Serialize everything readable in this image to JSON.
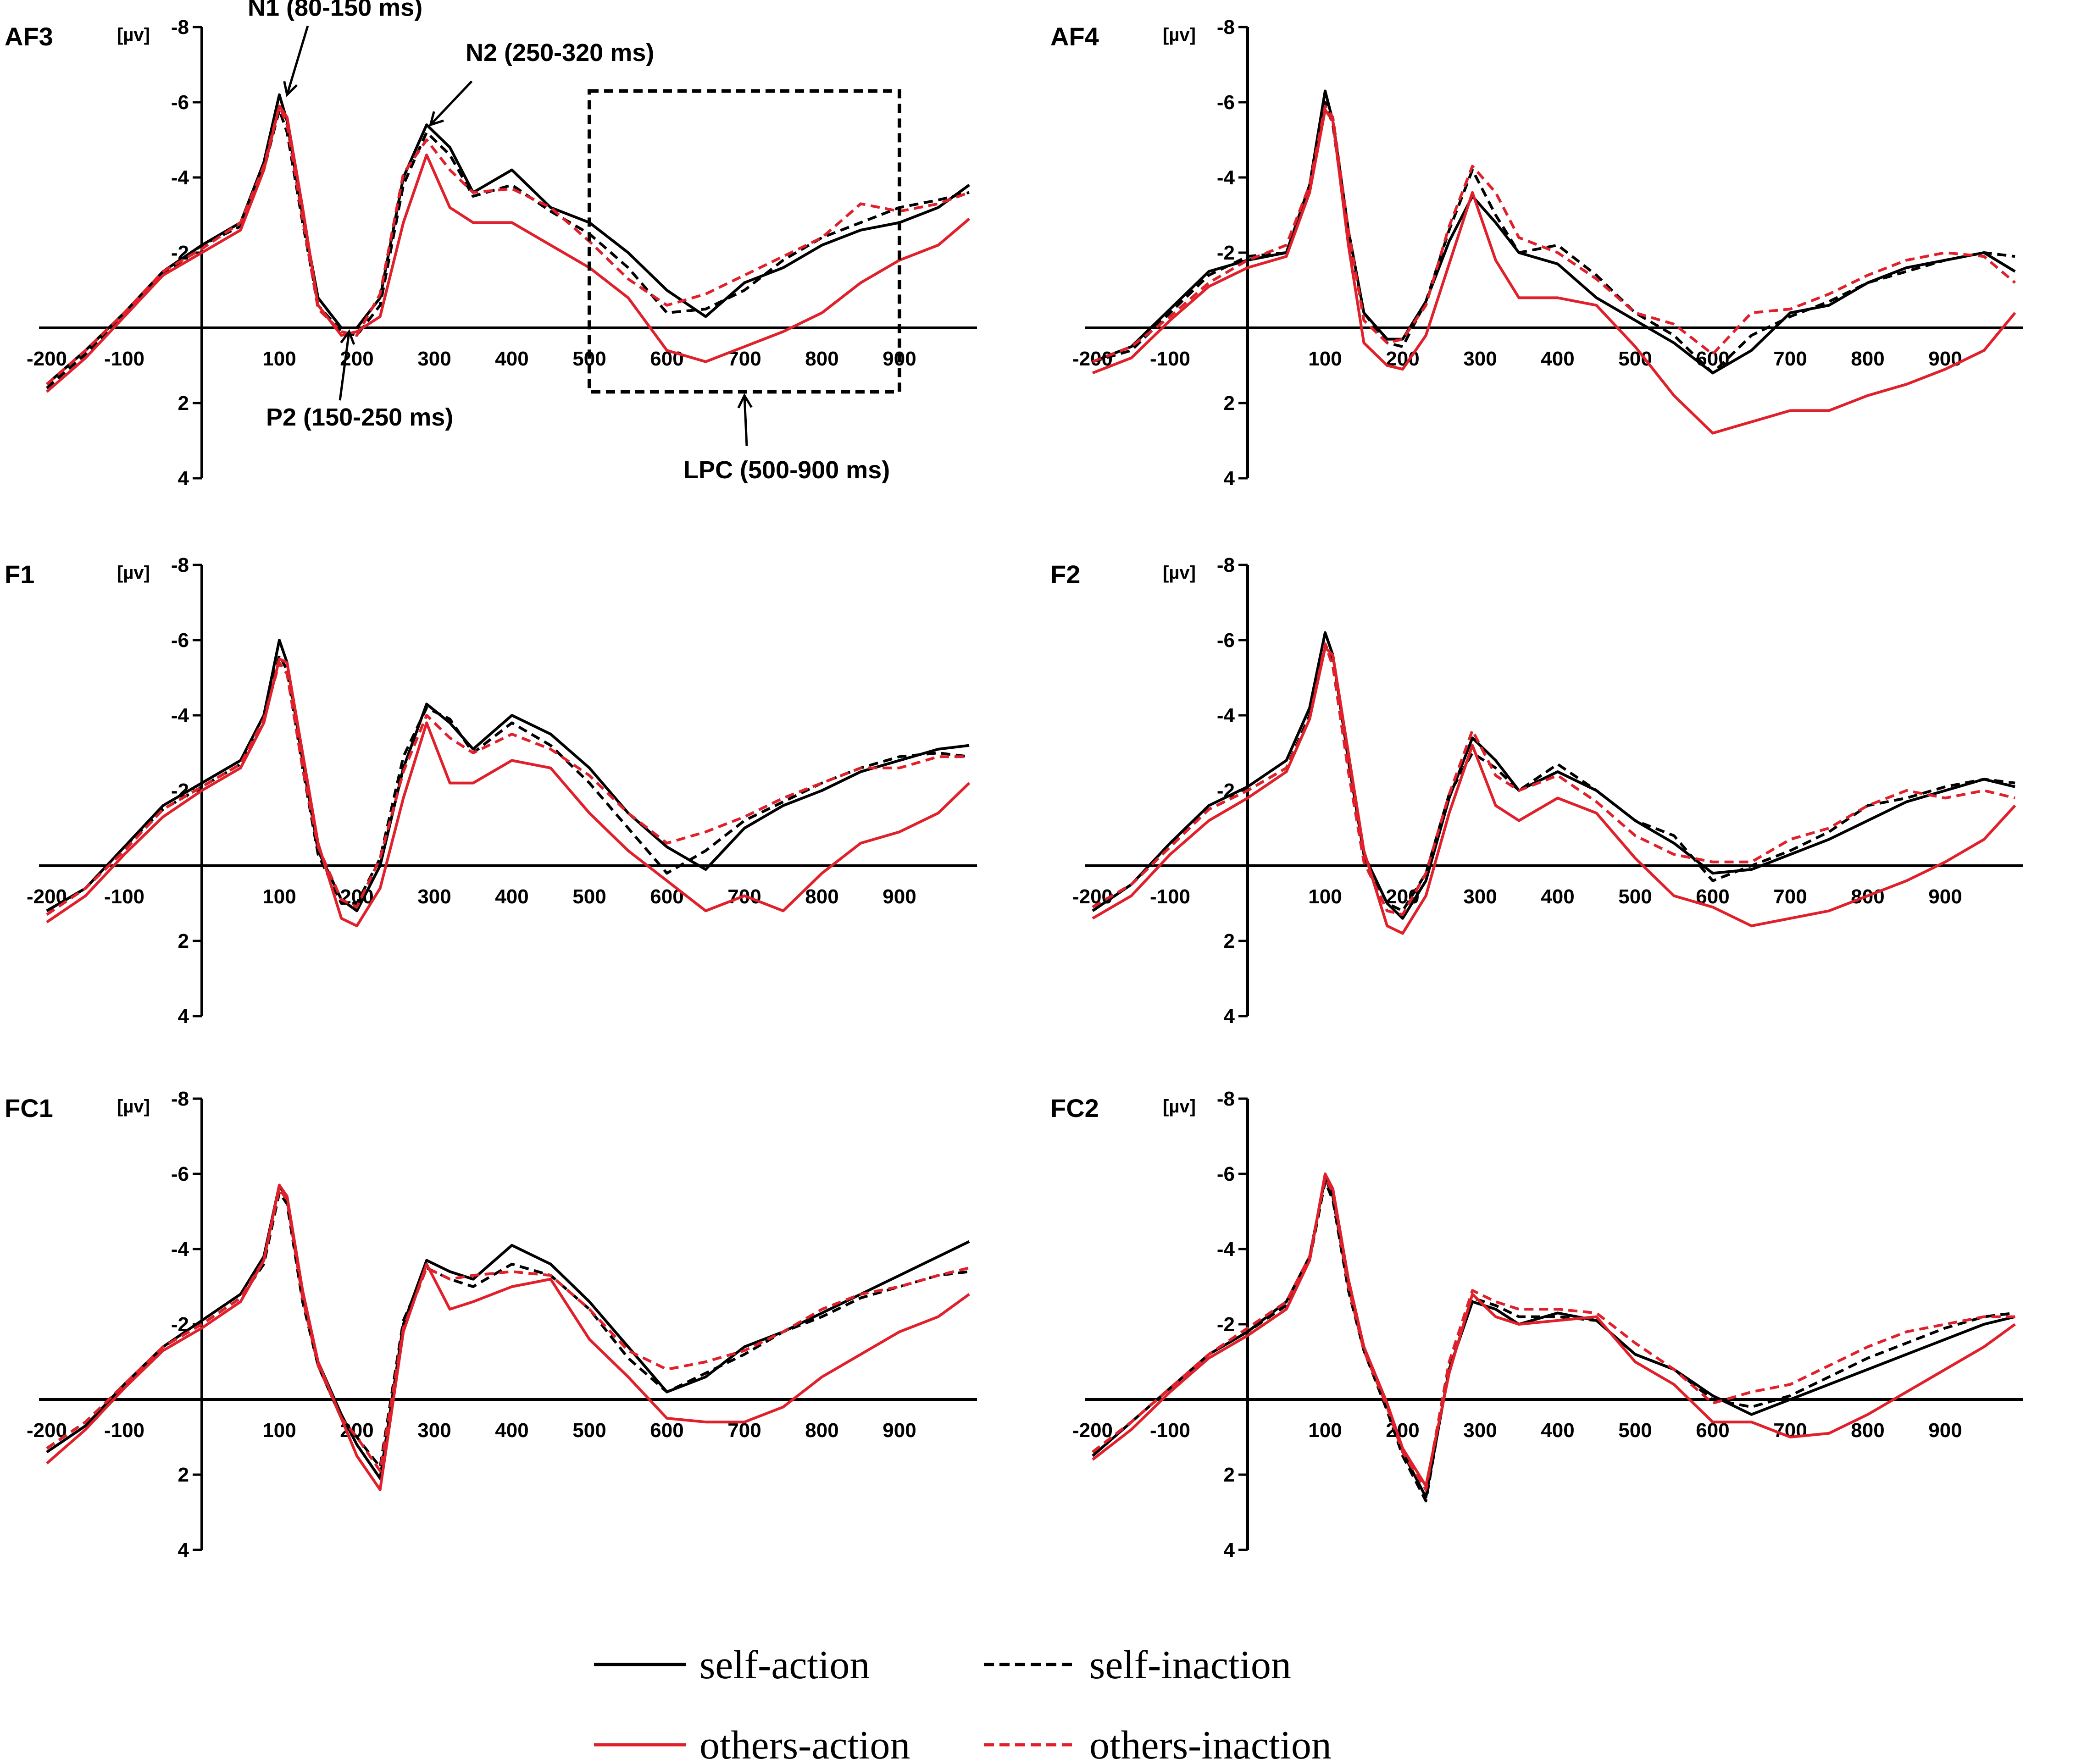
{
  "chart_data": {
    "type": "line",
    "description_units": {
      "x": "ms",
      "y": "µV (negative up)"
    },
    "y_unit_label": "[µv]",
    "xlim": [
      -210,
      1000
    ],
    "ylim": [
      4,
      -8
    ],
    "x_ticks": [
      -200,
      -100,
      100,
      200,
      300,
      400,
      500,
      600,
      700,
      800,
      900
    ],
    "y_ticks": [
      -8,
      -6,
      -4,
      -2,
      2,
      4
    ],
    "legend": [
      {
        "key": "self_action",
        "label": "self-action",
        "color": "#000000",
        "dash": "solid"
      },
      {
        "key": "self_inaction",
        "label": "self-inaction",
        "color": "#000000",
        "dash": "dashed"
      },
      {
        "key": "others_action",
        "label": "others-action",
        "color": "#e0202a",
        "dash": "solid"
      },
      {
        "key": "others_inaction",
        "label": "others-inaction",
        "color": "#e0202a",
        "dash": "dashed"
      }
    ],
    "x": [
      -200,
      -150,
      -100,
      -50,
      0,
      50,
      80,
      100,
      110,
      130,
      150,
      180,
      200,
      230,
      260,
      290,
      320,
      350,
      400,
      450,
      500,
      550,
      600,
      650,
      700,
      750,
      800,
      850,
      900,
      950,
      990
    ],
    "panels": [
      {
        "title": "AF3",
        "annotations": [
          {
            "text": "N1 (80-150 ms)",
            "x": 110,
            "y": -6.2
          },
          {
            "text": "N2 (250-320 ms)",
            "x": 295,
            "y": -5.4
          },
          {
            "text": "P2 (150-250 ms)",
            "x": 190,
            "y": 0.1
          },
          {
            "text": "LPC (500-900 ms)",
            "x": 700,
            "y": 1.8
          }
        ],
        "box": {
          "x": [
            500,
            900
          ],
          "y": [
            -6.3,
            1.7
          ]
        },
        "series": {
          "self_action": [
            1.5,
            0.6,
            -0.4,
            -1.5,
            -2.2,
            -2.8,
            -4.4,
            -6.2,
            -5.5,
            -3.0,
            -0.8,
            0.0,
            0.0,
            -0.8,
            -4.0,
            -5.4,
            -4.8,
            -3.6,
            -4.2,
            -3.2,
            -2.8,
            -2.0,
            -1.0,
            -0.3,
            -1.2,
            -1.6,
            -2.2,
            -2.6,
            -2.8,
            -3.2,
            -3.8
          ],
          "self_inaction": [
            1.6,
            0.7,
            -0.4,
            -1.4,
            -2.2,
            -2.7,
            -4.2,
            -5.8,
            -5.2,
            -2.8,
            -0.6,
            0.1,
            0.2,
            -0.6,
            -3.8,
            -5.2,
            -4.6,
            -3.5,
            -3.8,
            -3.1,
            -2.5,
            -1.6,
            -0.4,
            -0.5,
            -1.0,
            -1.8,
            -2.4,
            -2.8,
            -3.2,
            -3.4,
            -3.6
          ],
          "others_action": [
            1.7,
            0.8,
            -0.3,
            -1.4,
            -2.0,
            -2.6,
            -4.2,
            -5.9,
            -5.6,
            -3.2,
            -0.6,
            0.2,
            0.1,
            -0.3,
            -2.8,
            -4.6,
            -3.2,
            -2.8,
            -2.8,
            -2.2,
            -1.6,
            -0.8,
            0.6,
            0.9,
            0.5,
            0.1,
            -0.4,
            -1.2,
            -1.8,
            -2.2,
            -2.9
          ],
          "others_inaction": [
            1.5,
            0.6,
            -0.4,
            -1.5,
            -2.1,
            -2.8,
            -4.3,
            -5.9,
            -5.4,
            -2.9,
            -0.5,
            0.1,
            0.2,
            -0.9,
            -4.1,
            -5.0,
            -4.2,
            -3.6,
            -3.7,
            -3.2,
            -2.3,
            -1.3,
            -0.6,
            -0.9,
            -1.4,
            -1.9,
            -2.4,
            -3.3,
            -3.1,
            -3.3,
            -3.6
          ]
        }
      },
      {
        "title": "AF4",
        "annotations": [],
        "series": {
          "self_action": [
            0.9,
            0.5,
            -0.5,
            -1.5,
            -1.8,
            -2.0,
            -3.8,
            -6.3,
            -5.5,
            -2.6,
            -0.4,
            0.3,
            0.3,
            -0.7,
            -2.3,
            -3.5,
            -2.8,
            -2.0,
            -1.7,
            -0.8,
            -0.2,
            0.4,
            1.2,
            0.6,
            -0.4,
            -0.6,
            -1.2,
            -1.6,
            -1.8,
            -2.0,
            -1.5
          ],
          "self_inaction": [
            0.9,
            0.6,
            -0.4,
            -1.4,
            -1.9,
            -2.0,
            -3.6,
            -6.0,
            -5.4,
            -2.4,
            -0.4,
            0.4,
            0.5,
            -0.7,
            -2.6,
            -4.2,
            -3.0,
            -2.0,
            -2.2,
            -1.4,
            -0.4,
            0.2,
            1.2,
            0.2,
            -0.3,
            -0.7,
            -1.2,
            -1.5,
            -1.8,
            -2.0,
            -1.9
          ],
          "others_action": [
            1.2,
            0.8,
            -0.2,
            -1.1,
            -1.6,
            -1.9,
            -3.6,
            -5.8,
            -5.5,
            -2.2,
            0.4,
            1.0,
            1.1,
            0.2,
            -1.7,
            -3.6,
            -1.8,
            -0.8,
            -0.8,
            -0.6,
            0.5,
            1.8,
            2.8,
            2.5,
            2.2,
            2.2,
            1.8,
            1.5,
            1.1,
            0.6,
            -0.4
          ],
          "others_inaction": [
            0.9,
            0.5,
            -0.3,
            -1.2,
            -1.8,
            -2.2,
            -3.8,
            -5.9,
            -5.6,
            -2.6,
            -0.2,
            0.4,
            0.3,
            -0.6,
            -2.7,
            -4.3,
            -3.6,
            -2.4,
            -2.0,
            -1.3,
            -0.4,
            -0.1,
            0.7,
            -0.4,
            -0.5,
            -0.9,
            -1.4,
            -1.8,
            -2.0,
            -1.9,
            -1.2
          ]
        }
      },
      {
        "title": "F1",
        "annotations": [],
        "series": {
          "self_action": [
            1.2,
            0.6,
            -0.5,
            -1.6,
            -2.2,
            -2.8,
            -4.0,
            -6.0,
            -5.4,
            -2.8,
            -0.4,
            0.9,
            1.2,
            0.0,
            -2.6,
            -4.3,
            -3.8,
            -3.1,
            -4.0,
            -3.5,
            -2.6,
            -1.4,
            -0.5,
            0.1,
            -1.0,
            -1.6,
            -2.0,
            -2.5,
            -2.8,
            -3.1,
            -3.2
          ],
          "self_inaction": [
            1.2,
            0.6,
            -0.5,
            -1.5,
            -2.1,
            -2.7,
            -3.8,
            -5.6,
            -5.2,
            -2.6,
            -0.3,
            1.0,
            1.0,
            -0.2,
            -2.9,
            -4.2,
            -3.9,
            -3.0,
            -3.8,
            -3.2,
            -2.2,
            -1.0,
            0.2,
            -0.4,
            -1.2,
            -1.7,
            -2.2,
            -2.6,
            -2.9,
            -3.0,
            -2.9
          ],
          "others_action": [
            1.5,
            0.8,
            -0.3,
            -1.3,
            -2.0,
            -2.6,
            -3.8,
            -5.5,
            -5.4,
            -3.0,
            -0.6,
            1.4,
            1.6,
            0.6,
            -1.8,
            -3.8,
            -2.2,
            -2.2,
            -2.8,
            -2.6,
            -1.4,
            -0.4,
            0.4,
            1.2,
            0.8,
            1.2,
            0.2,
            -0.6,
            -0.9,
            -1.4,
            -2.2
          ],
          "others_inaction": [
            1.3,
            0.6,
            -0.4,
            -1.5,
            -2.1,
            -2.7,
            -3.9,
            -5.4,
            -5.1,
            -2.6,
            -0.5,
            0.9,
            1.1,
            -0.2,
            -2.5,
            -4.0,
            -3.4,
            -3.0,
            -3.5,
            -3.1,
            -2.4,
            -1.4,
            -0.6,
            -0.9,
            -1.3,
            -1.8,
            -2.2,
            -2.6,
            -2.6,
            -2.9,
            -2.9
          ]
        }
      },
      {
        "title": "F2",
        "annotations": [],
        "series": {
          "self_action": [
            1.2,
            0.5,
            -0.6,
            -1.6,
            -2.1,
            -2.8,
            -4.2,
            -6.2,
            -5.6,
            -2.8,
            -0.3,
            1.0,
            1.4,
            0.4,
            -1.8,
            -3.4,
            -2.8,
            -2.0,
            -2.5,
            -2.0,
            -1.2,
            -0.6,
            0.2,
            0.1,
            -0.3,
            -0.7,
            -1.2,
            -1.7,
            -2.0,
            -2.3,
            -2.1
          ],
          "self_inaction": [
            1.1,
            0.5,
            -0.5,
            -1.5,
            -2.0,
            -2.6,
            -4.0,
            -5.9,
            -5.4,
            -2.6,
            -0.2,
            1.0,
            1.2,
            0.2,
            -1.9,
            -3.0,
            -2.6,
            -2.0,
            -2.7,
            -2.0,
            -1.2,
            -0.8,
            0.4,
            0.0,
            -0.4,
            -0.9,
            -1.6,
            -1.8,
            -2.1,
            -2.3,
            -2.2
          ],
          "others_action": [
            1.4,
            0.8,
            -0.3,
            -1.2,
            -1.8,
            -2.5,
            -3.9,
            -5.8,
            -5.6,
            -3.0,
            -0.4,
            1.6,
            1.8,
            0.8,
            -1.4,
            -3.2,
            -1.6,
            -1.2,
            -1.8,
            -1.4,
            -0.2,
            0.8,
            1.1,
            1.6,
            1.4,
            1.2,
            0.8,
            0.4,
            -0.1,
            -0.7,
            -1.6
          ],
          "others_inaction": [
            1.1,
            0.5,
            -0.5,
            -1.5,
            -2.0,
            -2.6,
            -3.9,
            -5.9,
            -5.3,
            -2.5,
            -0.1,
            1.2,
            1.3,
            0.2,
            -1.9,
            -3.6,
            -2.4,
            -2.0,
            -2.4,
            -1.7,
            -0.8,
            -0.3,
            -0.1,
            -0.1,
            -0.7,
            -1.0,
            -1.6,
            -2.0,
            -1.8,
            -2.0,
            -1.8
          ]
        }
      },
      {
        "title": "FC1",
        "annotations": [],
        "series": {
          "self_action": [
            1.4,
            0.7,
            -0.4,
            -1.4,
            -2.1,
            -2.8,
            -3.8,
            -5.7,
            -5.3,
            -2.8,
            -1.0,
            0.4,
            1.2,
            2.1,
            -2.0,
            -3.7,
            -3.4,
            -3.2,
            -4.1,
            -3.6,
            -2.6,
            -1.4,
            -0.2,
            -0.6,
            -1.4,
            -1.8,
            -2.3,
            -2.8,
            -3.3,
            -3.8,
            -4.2
          ],
          "self_inaction": [
            1.3,
            0.6,
            -0.4,
            -1.4,
            -2.0,
            -2.7,
            -3.6,
            -5.5,
            -5.2,
            -2.6,
            -0.9,
            0.5,
            1.0,
            1.8,
            -2.1,
            -3.5,
            -3.2,
            -3.0,
            -3.6,
            -3.3,
            -2.4,
            -1.1,
            -0.2,
            -0.7,
            -1.2,
            -1.8,
            -2.2,
            -2.7,
            -3.0,
            -3.3,
            -3.4
          ],
          "others_action": [
            1.7,
            0.8,
            -0.3,
            -1.3,
            -1.9,
            -2.6,
            -3.7,
            -5.7,
            -5.4,
            -2.9,
            -1.0,
            0.5,
            1.5,
            2.4,
            -1.8,
            -3.6,
            -2.4,
            -2.6,
            -3.0,
            -3.2,
            -1.6,
            -0.6,
            0.5,
            0.6,
            0.6,
            0.2,
            -0.6,
            -1.2,
            -1.8,
            -2.2,
            -2.8
          ],
          "others_inaction": [
            1.3,
            0.6,
            -0.4,
            -1.4,
            -2.0,
            -2.7,
            -3.7,
            -5.6,
            -5.3,
            -2.7,
            -0.9,
            0.5,
            1.0,
            1.9,
            -1.9,
            -3.5,
            -3.2,
            -3.3,
            -3.4,
            -3.3,
            -2.4,
            -1.3,
            -0.8,
            -1.0,
            -1.3,
            -1.8,
            -2.4,
            -2.8,
            -3.0,
            -3.3,
            -3.5
          ]
        }
      },
      {
        "title": "FC2",
        "annotations": [],
        "series": {
          "self_action": [
            1.5,
            0.6,
            -0.3,
            -1.2,
            -1.8,
            -2.6,
            -3.8,
            -5.9,
            -5.4,
            -3.0,
            -1.4,
            0.2,
            1.4,
            2.6,
            -0.8,
            -2.6,
            -2.4,
            -2.0,
            -2.3,
            -2.1,
            -1.2,
            -0.8,
            -0.1,
            0.4,
            0.0,
            -0.4,
            -0.8,
            -1.2,
            -1.6,
            -2.0,
            -2.2
          ],
          "self_inaction": [
            1.4,
            0.6,
            -0.3,
            -1.2,
            -1.8,
            -2.5,
            -3.7,
            -5.8,
            -5.3,
            -2.9,
            -1.3,
            0.3,
            1.5,
            2.7,
            -0.9,
            -2.7,
            -2.5,
            -2.2,
            -2.2,
            -2.1,
            -1.2,
            -0.8,
            0.0,
            0.2,
            -0.1,
            -0.6,
            -1.1,
            -1.5,
            -1.9,
            -2.2,
            -2.3
          ],
          "others_action": [
            1.6,
            0.8,
            -0.2,
            -1.1,
            -1.7,
            -2.4,
            -3.7,
            -6.0,
            -5.6,
            -3.2,
            -1.4,
            0.1,
            1.3,
            2.3,
            -0.7,
            -2.8,
            -2.2,
            -2.0,
            -2.1,
            -2.2,
            -1.0,
            -0.4,
            0.6,
            0.6,
            1.0,
            0.9,
            0.4,
            -0.2,
            -0.8,
            -1.4,
            -2.0
          ],
          "others_inaction": [
            1.4,
            0.6,
            -0.3,
            -1.2,
            -1.9,
            -2.6,
            -3.8,
            -5.9,
            -5.5,
            -3.0,
            -1.3,
            0.2,
            1.4,
            2.4,
            -1.0,
            -2.9,
            -2.6,
            -2.4,
            -2.4,
            -2.3,
            -1.5,
            -0.8,
            0.1,
            -0.2,
            -0.4,
            -0.9,
            -1.4,
            -1.8,
            -2.0,
            -2.2,
            -2.2
          ]
        }
      }
    ]
  }
}
